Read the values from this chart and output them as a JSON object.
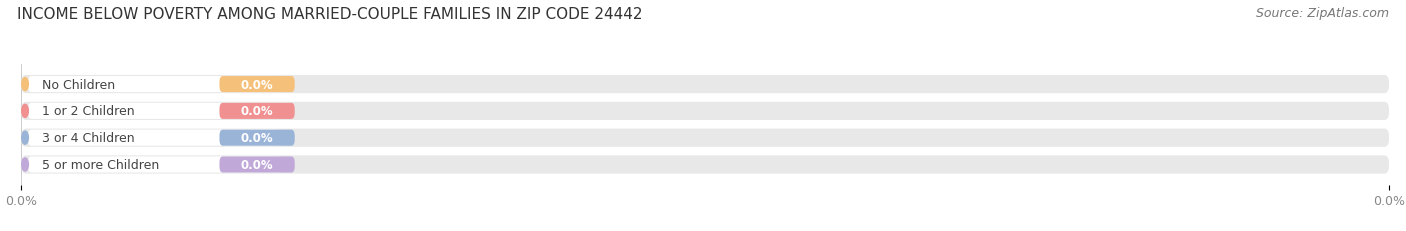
{
  "title": "INCOME BELOW POVERTY AMONG MARRIED-COUPLE FAMILIES IN ZIP CODE 24442",
  "source": "Source: ZipAtlas.com",
  "categories": [
    "No Children",
    "1 or 2 Children",
    "3 or 4 Children",
    "5 or more Children"
  ],
  "values": [
    0.0,
    0.0,
    0.0,
    0.0
  ],
  "bar_colors": [
    "#f5c07a",
    "#f09090",
    "#9ab4d8",
    "#c0a8d8"
  ],
  "bar_bg_color": "#e8e8e8",
  "bar_left_bg": "#f5f5f5",
  "xlim_data": [
    0,
    100
  ],
  "label_portion": 18.0,
  "title_fontsize": 11,
  "source_fontsize": 9,
  "bar_height": 0.68,
  "background_color": "#ffffff",
  "text_color": "#555555",
  "label_text_color": "#444444",
  "value_label_color": "#ffffff",
  "tick_label_color": "#888888"
}
